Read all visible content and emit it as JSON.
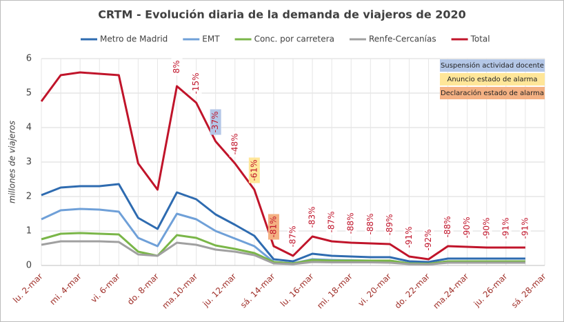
{
  "chart_data": {
    "type": "line",
    "title": "CRTM - Evolución diaria de la demanda de viajeros de 2020",
    "y_label": "millones de viajeros",
    "categories": [
      "lu. 2-mar",
      null,
      "mi. 4-mar",
      null,
      "vi. 6-mar",
      null,
      "do. 8-mar",
      null,
      "ma.10-mar",
      null,
      "ju. 12-mar",
      null,
      "sá. 14-mar",
      null,
      "lu. 16-mar",
      null,
      "mi. 18-mar",
      null,
      "vi. 20-mar",
      null,
      "do. 22-mar",
      null,
      "ma.24-mar",
      null,
      "ju. 26-mar",
      null,
      "sá. 28-mar"
    ],
    "series": [
      {
        "name": "Metro de Madrid",
        "color": "#2e6bb0",
        "values": [
          2.04,
          2.26,
          2.3,
          2.3,
          2.36,
          1.38,
          1.06,
          2.12,
          1.92,
          1.48,
          1.18,
          0.86,
          0.18,
          0.12,
          0.34,
          0.28,
          0.26,
          0.24,
          0.24,
          0.12,
          0.1,
          0.2,
          0.2,
          0.2,
          0.2,
          0.2,
          null
        ]
      },
      {
        "name": "EMT",
        "color": "#6fa0d8",
        "values": [
          1.34,
          1.6,
          1.64,
          1.62,
          1.56,
          0.8,
          0.56,
          1.5,
          1.34,
          1.0,
          0.78,
          0.56,
          0.1,
          0.06,
          0.18,
          0.16,
          0.15,
          0.14,
          0.14,
          0.06,
          0.05,
          0.12,
          0.12,
          0.12,
          0.12,
          0.12,
          null
        ]
      },
      {
        "name": "Conc. por carretera",
        "color": "#7ab648",
        "values": [
          0.76,
          0.92,
          0.94,
          0.92,
          0.9,
          0.4,
          0.28,
          0.88,
          0.8,
          0.58,
          0.48,
          0.36,
          0.1,
          0.06,
          0.16,
          0.14,
          0.14,
          0.14,
          0.14,
          0.06,
          0.05,
          0.12,
          0.12,
          0.12,
          0.12,
          0.12,
          null
        ]
      },
      {
        "name": "Renfe-Cercanías",
        "color": "#a0a0a0",
        "values": [
          0.6,
          0.7,
          0.7,
          0.7,
          0.68,
          0.32,
          0.28,
          0.66,
          0.6,
          0.46,
          0.4,
          0.3,
          0.06,
          0.04,
          0.1,
          0.09,
          0.09,
          0.09,
          0.08,
          0.04,
          0.03,
          0.08,
          0.08,
          0.08,
          0.08,
          0.08,
          null
        ]
      },
      {
        "name": "Total",
        "color": "#c0142a",
        "values": [
          4.76,
          5.52,
          5.6,
          5.56,
          5.52,
          2.96,
          2.2,
          5.2,
          4.72,
          3.6,
          2.96,
          2.2,
          0.56,
          0.28,
          0.84,
          0.7,
          0.66,
          0.64,
          0.62,
          0.26,
          0.18,
          0.56,
          0.54,
          0.52,
          0.52,
          0.52,
          null
        ],
        "annotations": [
          null,
          null,
          null,
          null,
          null,
          null,
          null,
          "8%",
          "-15%",
          "-37%",
          "-48%",
          "-61%",
          "-81%",
          "-87%",
          "-83%",
          "-87%",
          "-88%",
          "-88%",
          "-89%",
          "-91%",
          "-92%",
          "-88%",
          "-90%",
          "-90%",
          "-91%",
          "-91%",
          null
        ],
        "annotation_colors": [
          null,
          null,
          null,
          null,
          null,
          null,
          null,
          null,
          null,
          "#b4c7e7",
          null,
          "#ffe699",
          "#f4b183",
          null,
          null,
          null,
          null,
          null,
          null,
          null,
          null,
          null,
          null,
          null,
          null,
          null,
          null
        ]
      }
    ],
    "events": [
      {
        "label": "Suspensión actividad docente",
        "color": "#b4c7e7"
      },
      {
        "label": "Anuncio estado de alarma",
        "color": "#ffe699"
      },
      {
        "label": "Declaración estado de alarma",
        "color": "#f4b183"
      }
    ],
    "ylim": [
      0,
      6
    ],
    "yticks": [
      0,
      1,
      2,
      3,
      4,
      5,
      6
    ],
    "grid": true
  }
}
